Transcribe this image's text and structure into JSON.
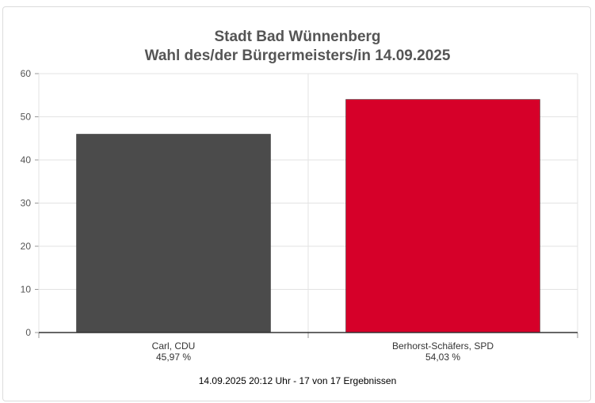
{
  "chart_data": {
    "type": "bar",
    "title": "Stadt Bad Wünnenberg",
    "subtitle": "Wahl des/der Bürgermeisters/in 14.09.2025",
    "categories": [
      "Carl, CDU",
      "Berhorst-Schäfers, SPD"
    ],
    "value_labels": [
      "45,97 %",
      "54,03 %"
    ],
    "values": [
      45.97,
      54.03
    ],
    "colors": [
      "#4b4b4b",
      "#d60029"
    ],
    "ylim": [
      0,
      60
    ],
    "yticks": [
      "0",
      "10",
      "20",
      "30",
      "40",
      "50",
      "60"
    ],
    "grid": true,
    "footer": "14.09.2025 20:12 Uhr - 17 von 17 Ergebnissen"
  }
}
